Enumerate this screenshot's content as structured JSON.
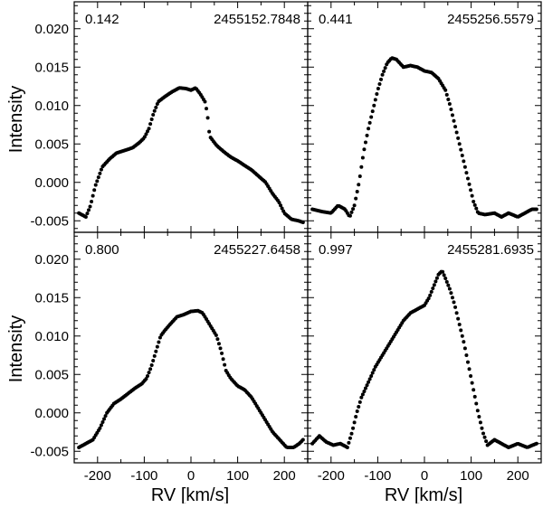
{
  "figure": {
    "ylabel": "Intensity",
    "xlabel": "RV [km/s]",
    "x_ticks": [
      -200,
      -100,
      0,
      100,
      200
    ],
    "y_ticks": [
      -0.005,
      0.0,
      0.005,
      0.01,
      0.015,
      0.02
    ],
    "x_tick_labels": [
      "-200",
      "-100",
      "0",
      "100",
      "200"
    ],
    "y_tick_labels": [
      "-0.005",
      "0.000",
      "0.005",
      "0.010",
      "0.015",
      "0.020"
    ],
    "xlim": [
      -250,
      250
    ],
    "ylim": [
      -0.0065,
      0.0235
    ],
    "marker_color": "#000000"
  },
  "chart_data": [
    {
      "type": "scatter",
      "phase": "0.142",
      "date": "2455152.7848",
      "profile": [
        [
          -240,
          -0.004
        ],
        [
          -225,
          -0.0045
        ],
        [
          -215,
          -0.003
        ],
        [
          -205,
          -0.0005
        ],
        [
          -190,
          0.002
        ],
        [
          -175,
          0.003
        ],
        [
          -160,
          0.0038
        ],
        [
          -140,
          0.0042
        ],
        [
          -125,
          0.0045
        ],
        [
          -110,
          0.0052
        ],
        [
          -100,
          0.0058
        ],
        [
          -90,
          0.007
        ],
        [
          -80,
          0.009
        ],
        [
          -70,
          0.0105
        ],
        [
          -55,
          0.0112
        ],
        [
          -40,
          0.0118
        ],
        [
          -25,
          0.0123
        ],
        [
          -10,
          0.0122
        ],
        [
          0,
          0.012
        ],
        [
          10,
          0.0123
        ],
        [
          20,
          0.0115
        ],
        [
          30,
          0.0105
        ],
        [
          35,
          0.009
        ],
        [
          40,
          0.006
        ],
        [
          55,
          0.0048
        ],
        [
          70,
          0.004
        ],
        [
          85,
          0.0033
        ],
        [
          100,
          0.0028
        ],
        [
          115,
          0.0022
        ],
        [
          130,
          0.0016
        ],
        [
          145,
          0.0008
        ],
        [
          160,
          0.0
        ],
        [
          175,
          -0.0015
        ],
        [
          188,
          -0.0025
        ],
        [
          200,
          -0.004
        ],
        [
          215,
          -0.0048
        ],
        [
          230,
          -0.005
        ],
        [
          240,
          -0.0052
        ]
      ]
    },
    {
      "type": "scatter",
      "phase": "0.441",
      "date": "2455256.5579",
      "profile": [
        [
          -240,
          -0.0035
        ],
        [
          -220,
          -0.0038
        ],
        [
          -200,
          -0.004
        ],
        [
          -185,
          -0.003
        ],
        [
          -170,
          -0.0035
        ],
        [
          -160,
          -0.0045
        ],
        [
          -150,
          -0.003
        ],
        [
          -140,
          0.0
        ],
        [
          -130,
          0.004
        ],
        [
          -120,
          0.007
        ],
        [
          -110,
          0.0095
        ],
        [
          -100,
          0.012
        ],
        [
          -90,
          0.014
        ],
        [
          -80,
          0.0155
        ],
        [
          -70,
          0.0162
        ],
        [
          -60,
          0.016
        ],
        [
          -45,
          0.015
        ],
        [
          -30,
          0.0152
        ],
        [
          -15,
          0.015
        ],
        [
          0,
          0.0145
        ],
        [
          15,
          0.0143
        ],
        [
          30,
          0.0135
        ],
        [
          45,
          0.012
        ],
        [
          55,
          0.01
        ],
        [
          65,
          0.0075
        ],
        [
          75,
          0.005
        ],
        [
          85,
          0.0025
        ],
        [
          95,
          0.0
        ],
        [
          105,
          -0.0025
        ],
        [
          115,
          -0.004
        ],
        [
          130,
          -0.0042
        ],
        [
          150,
          -0.004
        ],
        [
          165,
          -0.0045
        ],
        [
          180,
          -0.004
        ],
        [
          200,
          -0.0045
        ],
        [
          215,
          -0.004
        ],
        [
          230,
          -0.0035
        ],
        [
          240,
          -0.0035
        ]
      ]
    },
    {
      "type": "scatter",
      "phase": "0.800",
      "date": "2455227.6458",
      "profile": [
        [
          -240,
          -0.0045
        ],
        [
          -225,
          -0.004
        ],
        [
          -210,
          -0.0035
        ],
        [
          -195,
          -0.002
        ],
        [
          -180,
          0.0
        ],
        [
          -165,
          0.0012
        ],
        [
          -150,
          0.0018
        ],
        [
          -135,
          0.0025
        ],
        [
          -120,
          0.0032
        ],
        [
          -105,
          0.0038
        ],
        [
          -95,
          0.0045
        ],
        [
          -85,
          0.006
        ],
        [
          -75,
          0.008
        ],
        [
          -65,
          0.01
        ],
        [
          -55,
          0.0108
        ],
        [
          -45,
          0.0115
        ],
        [
          -30,
          0.0125
        ],
        [
          -15,
          0.0128
        ],
        [
          0,
          0.0132
        ],
        [
          15,
          0.0133
        ],
        [
          25,
          0.013
        ],
        [
          35,
          0.012
        ],
        [
          45,
          0.011
        ],
        [
          55,
          0.01
        ],
        [
          65,
          0.008
        ],
        [
          75,
          0.0055
        ],
        [
          85,
          0.0045
        ],
        [
          100,
          0.0035
        ],
        [
          115,
          0.003
        ],
        [
          130,
          0.002
        ],
        [
          145,
          0.0005
        ],
        [
          160,
          -0.001
        ],
        [
          175,
          -0.0025
        ],
        [
          190,
          -0.0035
        ],
        [
          205,
          -0.0045
        ],
        [
          220,
          -0.0045
        ],
        [
          232,
          -0.004
        ],
        [
          240,
          -0.0035
        ]
      ]
    },
    {
      "type": "scatter",
      "phase": "0.997",
      "date": "2455281.6935",
      "profile": [
        [
          -240,
          -0.004
        ],
        [
          -225,
          -0.003
        ],
        [
          -210,
          -0.0038
        ],
        [
          -195,
          -0.0042
        ],
        [
          -180,
          -0.004
        ],
        [
          -165,
          -0.0045
        ],
        [
          -155,
          -0.0025
        ],
        [
          -145,
          0.0
        ],
        [
          -135,
          0.002
        ],
        [
          -120,
          0.004
        ],
        [
          -105,
          0.006
        ],
        [
          -90,
          0.0075
        ],
        [
          -75,
          0.009
        ],
        [
          -60,
          0.0105
        ],
        [
          -45,
          0.012
        ],
        [
          -30,
          0.013
        ],
        [
          -15,
          0.0135
        ],
        [
          0,
          0.014
        ],
        [
          10,
          0.015
        ],
        [
          20,
          0.0165
        ],
        [
          30,
          0.018
        ],
        [
          38,
          0.0185
        ],
        [
          45,
          0.0175
        ],
        [
          55,
          0.016
        ],
        [
          65,
          0.014
        ],
        [
          75,
          0.0115
        ],
        [
          85,
          0.009
        ],
        [
          95,
          0.006
        ],
        [
          105,
          0.003
        ],
        [
          115,
          0.0
        ],
        [
          125,
          -0.0025
        ],
        [
          135,
          -0.0042
        ],
        [
          150,
          -0.0035
        ],
        [
          165,
          -0.004
        ],
        [
          180,
          -0.0045
        ],
        [
          200,
          -0.004
        ],
        [
          220,
          -0.0045
        ],
        [
          240,
          -0.004
        ]
      ]
    }
  ]
}
